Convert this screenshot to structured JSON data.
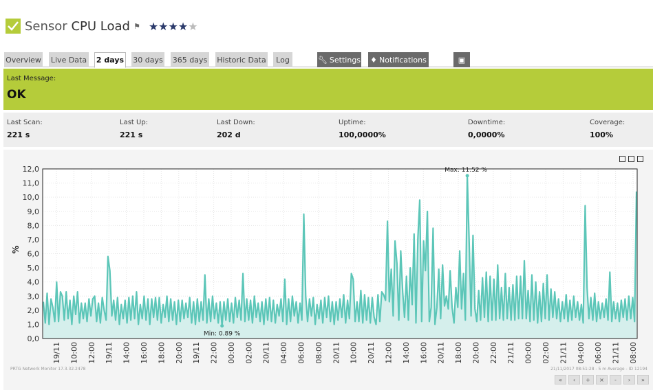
{
  "header": {
    "prefix": "Sensor",
    "name": "CPU Load",
    "rating": 4,
    "rating_max": 5,
    "accent_color": "#b5cc3a"
  },
  "tabs": [
    {
      "label": "Overview",
      "active": false
    },
    {
      "label": "Live Data",
      "active": false
    },
    {
      "label": "2 days",
      "active": true
    },
    {
      "label": "30 days",
      "active": false
    },
    {
      "label": "365 days",
      "active": false
    },
    {
      "label": "Historic Data",
      "active": false
    },
    {
      "label": "Log",
      "active": false
    }
  ],
  "actions": {
    "settings": "Settings",
    "notifications": "Notifications"
  },
  "status": {
    "label": "Last Message:",
    "value": "OK"
  },
  "info": [
    {
      "key": "Last Scan:",
      "value": "221 s"
    },
    {
      "key": "Last Up:",
      "value": "221 s"
    },
    {
      "key": "Last Down:",
      "value": "202 d"
    },
    {
      "key": "Uptime:",
      "value": "100,0000%"
    },
    {
      "key": "Downtime:",
      "value": "0,0000%"
    },
    {
      "key": "Coverage:",
      "value": "100%"
    }
  ],
  "chart_data": {
    "type": "area",
    "ylabel": "%",
    "ylim": [
      0,
      12
    ],
    "yticks": [
      "0,0",
      "1,0",
      "2,0",
      "3,0",
      "4,0",
      "5,0",
      "6,0",
      "7,0",
      "8,0",
      "9,0",
      "10,0",
      "11,0",
      "12,0"
    ],
    "xticks": [
      "19/11",
      "10:00",
      "12:00",
      "19/11",
      "14:00",
      "16:00",
      "18:00",
      "20:00",
      "19/11",
      "22:00",
      "00:00",
      "02:00",
      "20/11",
      "04:00",
      "06:00",
      "08:00",
      "20/11",
      "10:00",
      "20/11",
      "12:00",
      "14:00",
      "16:00",
      "20/11",
      "18:00",
      "20:00",
      "22:00",
      "21/11",
      "00:00",
      "02:00",
      "21/11",
      "04:00",
      "06:00",
      "21/11",
      "08:00"
    ],
    "annotations": {
      "max": "Max: 11.52 %",
      "min": "Min: 0.89 %"
    },
    "line_color": "#5cc6b8",
    "fill_color": "#d5efec",
    "series": [
      {
        "values": [
          2.6,
          1.1,
          3.2,
          1.0,
          2.8,
          2.2,
          1.2,
          4.0,
          1.2,
          3.3,
          3.0,
          1.3,
          3.3,
          1.4,
          2.7,
          1.0,
          3.0,
          1.7,
          3.3,
          1.1,
          2.5,
          1.4,
          2.5,
          1.2,
          2.8,
          1.6,
          2.8,
          3.0,
          1.2,
          2.5,
          1.1,
          2.9,
          2.0,
          1.3,
          5.8,
          4.8,
          1.6,
          2.7,
          1.3,
          2.9,
          1.0,
          2.4,
          1.4,
          2.7,
          1.1,
          2.9,
          1.3,
          3.0,
          1.4,
          3.3,
          1.0,
          2.4,
          1.4,
          3.0,
          1.3,
          2.8,
          1.0,
          2.8,
          1.5,
          2.9,
          1.3,
          2.9,
          1.1,
          2.4,
          1.5,
          3.0,
          1.2,
          2.8,
          1.3,
          2.6,
          1.0,
          2.7,
          1.2,
          2.7,
          1.4,
          2.5,
          1.5,
          2.9,
          1.1,
          2.6,
          1.0,
          2.8,
          1.2,
          2.6,
          1.3,
          4.5,
          1.1,
          2.8,
          1.2,
          3.0,
          1.4,
          2.5,
          1.1,
          2.6,
          0.9,
          2.6,
          1.3,
          2.8,
          1.2,
          2.5,
          1.1,
          2.9,
          1.5,
          2.7,
          1.3,
          4.6,
          1.2,
          2.8,
          1.3,
          2.7,
          1.1,
          3.0,
          1.5,
          2.5,
          1.2,
          2.6,
          1.0,
          2.8,
          1.3,
          2.9,
          1.2,
          2.7,
          1.1,
          2.4,
          1.6,
          2.8,
          1.2,
          4.2,
          1.0,
          2.8,
          1.2,
          3.0,
          1.6,
          2.6,
          1.1,
          2.5,
          1.3,
          8.8,
          3.0,
          1.2,
          2.8,
          1.6,
          2.9,
          1.0,
          2.4,
          1.4,
          2.7,
          1.1,
          2.9,
          1.5,
          3.0,
          1.2,
          2.6,
          1.0,
          2.6,
          1.3,
          2.8,
          1.5,
          3.1,
          1.1,
          2.7,
          1.4,
          4.6,
          4.2,
          1.2,
          2.6,
          1.2,
          3.4,
          1.1,
          3.1,
          1.3,
          2.9,
          1.1,
          2.9,
          1.5,
          1.0,
          3.1,
          1.2,
          3.3,
          3.1,
          2.7,
          8.3,
          2.6,
          4.9,
          1.6,
          6.9,
          5.3,
          1.3,
          6.2,
          3.3,
          1.5,
          4.4,
          1.3,
          5.0,
          2.4,
          7.4,
          1.1,
          7.1,
          9.8,
          1.2,
          6.9,
          4.8,
          9.0,
          1.2,
          2.2,
          7.8,
          1.0,
          2.2,
          4.9,
          1.4,
          5.2,
          2.3,
          3.0,
          2.1,
          4.8,
          2.2,
          1.1,
          3.6,
          2.2,
          6.2,
          2.1,
          4.6,
          1.3,
          11.52,
          6.7,
          1.6,
          7.3,
          2.1,
          1.2,
          3.4,
          1.3,
          4.3,
          1.5,
          4.7,
          1.2,
          4.4,
          1.3,
          4.2,
          1.3,
          5.2,
          1.4,
          3.6,
          1.3,
          4.6,
          1.4,
          3.6,
          1.3,
          3.8,
          1.3,
          4.4,
          1.4,
          4.4,
          1.4,
          5.5,
          1.4,
          3.4,
          1.2,
          4.5,
          1.3,
          4.0,
          1.1,
          3.3,
          1.2,
          3.9,
          1.4,
          4.5,
          1.3,
          3.5,
          1.5,
          3.3,
          1.4,
          2.8,
          1.2,
          2.6,
          1.4,
          3.1,
          1.2,
          2.7,
          1.3,
          3.0,
          1.5,
          2.6,
          1.3,
          2.4,
          1.1,
          9.4,
          3.6,
          1.4,
          2.9,
          1.3,
          3.2,
          1.2,
          2.6,
          1.4,
          2.5,
          1.5,
          2.8,
          1.3,
          4.7,
          1.2,
          2.6,
          1.4,
          2.5,
          1.2,
          2.7,
          1.5,
          2.8,
          1.3,
          3.0,
          1.4,
          2.9,
          1.2,
          10.4
        ]
      }
    ]
  },
  "footer": {
    "left": "PRTG Network Monitor 17.3.32.2478",
    "right": "21/11/2017 08:51:28 - 5 m Average - ID 12194"
  },
  "pager": [
    "«",
    "‹",
    "+",
    "×",
    "-",
    "›",
    "»"
  ]
}
